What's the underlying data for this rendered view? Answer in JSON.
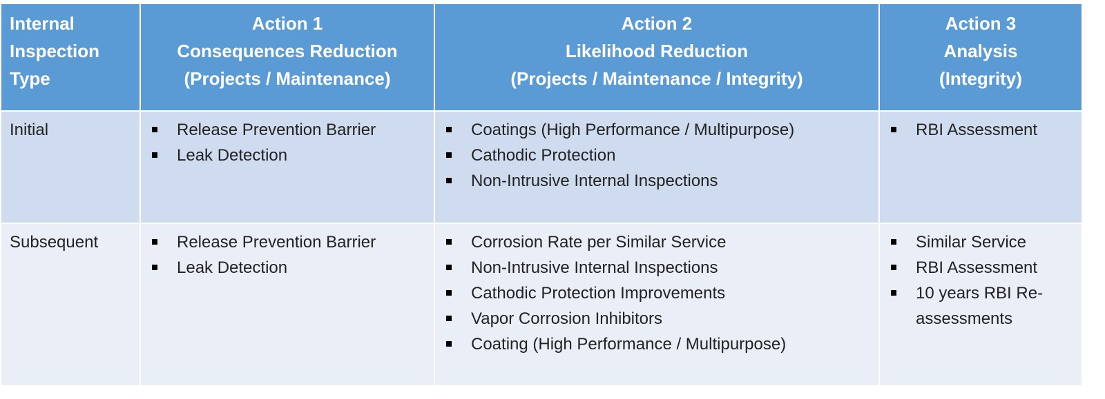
{
  "table": {
    "header": [
      [
        "Internal",
        "Inspection",
        "Type"
      ],
      [
        "Action 1",
        "Consequences Reduction",
        "(Projects / Maintenance)"
      ],
      [
        "Action 2",
        "Likelihood Reduction",
        "(Projects / Maintenance / Integrity)"
      ],
      [
        "Action 3",
        "Analysis",
        "(Integrity)"
      ]
    ],
    "rows": [
      {
        "label": "Initial",
        "cells": [
          [
            "Release Prevention Barrier",
            "Leak Detection"
          ],
          [
            "Coatings (High Performance / Multipurpose)",
            "Cathodic Protection",
            "Non-Intrusive Internal Inspections"
          ],
          [
            "RBI Assessment"
          ]
        ]
      },
      {
        "label": "Subsequent",
        "cells": [
          [
            "Release Prevention Barrier",
            "Leak Detection"
          ],
          [
            "Corrosion Rate per Similar Service",
            "Non-Intrusive Internal Inspections",
            "Cathodic Protection Improvements",
            "Vapor Corrosion Inhibitors",
            "Coating (High Performance / Multipurpose)"
          ],
          [
            "Similar Service",
            "RBI Assessment",
            "10 years RBI Re-assessments"
          ]
        ]
      }
    ]
  }
}
